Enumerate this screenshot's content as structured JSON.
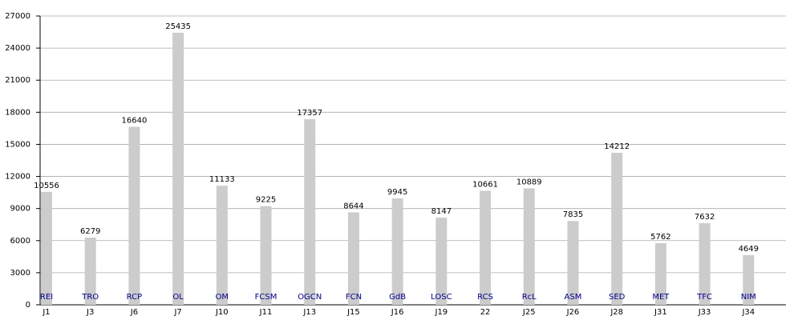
{
  "chart_data": {
    "type": "bar",
    "categories": [
      "J1",
      "J3",
      "J6",
      "J7",
      "J10",
      "J11",
      "J13",
      "J15",
      "J16",
      "J19",
      "22",
      "J25",
      "J26",
      "J28",
      "J31",
      "J33",
      "J34"
    ],
    "teams": [
      "REI",
      "TRO",
      "RCP",
      "OL",
      "OM",
      "FCSM",
      "OGCN",
      "FCN",
      "GdB",
      "LOSC",
      "RCS",
      "RcL",
      "ASM",
      "SED",
      "MET",
      "TFC",
      "NIM"
    ],
    "values": [
      10556,
      6279,
      16640,
      25435,
      11133,
      9225,
      17357,
      8644,
      9945,
      8147,
      10661,
      10889,
      7835,
      14212,
      5762,
      7632,
      4649
    ],
    "color": "#cccccc",
    "team_color": "#00008b",
    "ylim": [
      0,
      27000
    ],
    "yticks": [
      0,
      3000,
      6000,
      9000,
      12000,
      15000,
      18000,
      21000,
      24000,
      27000
    ],
    "grid": true
  }
}
